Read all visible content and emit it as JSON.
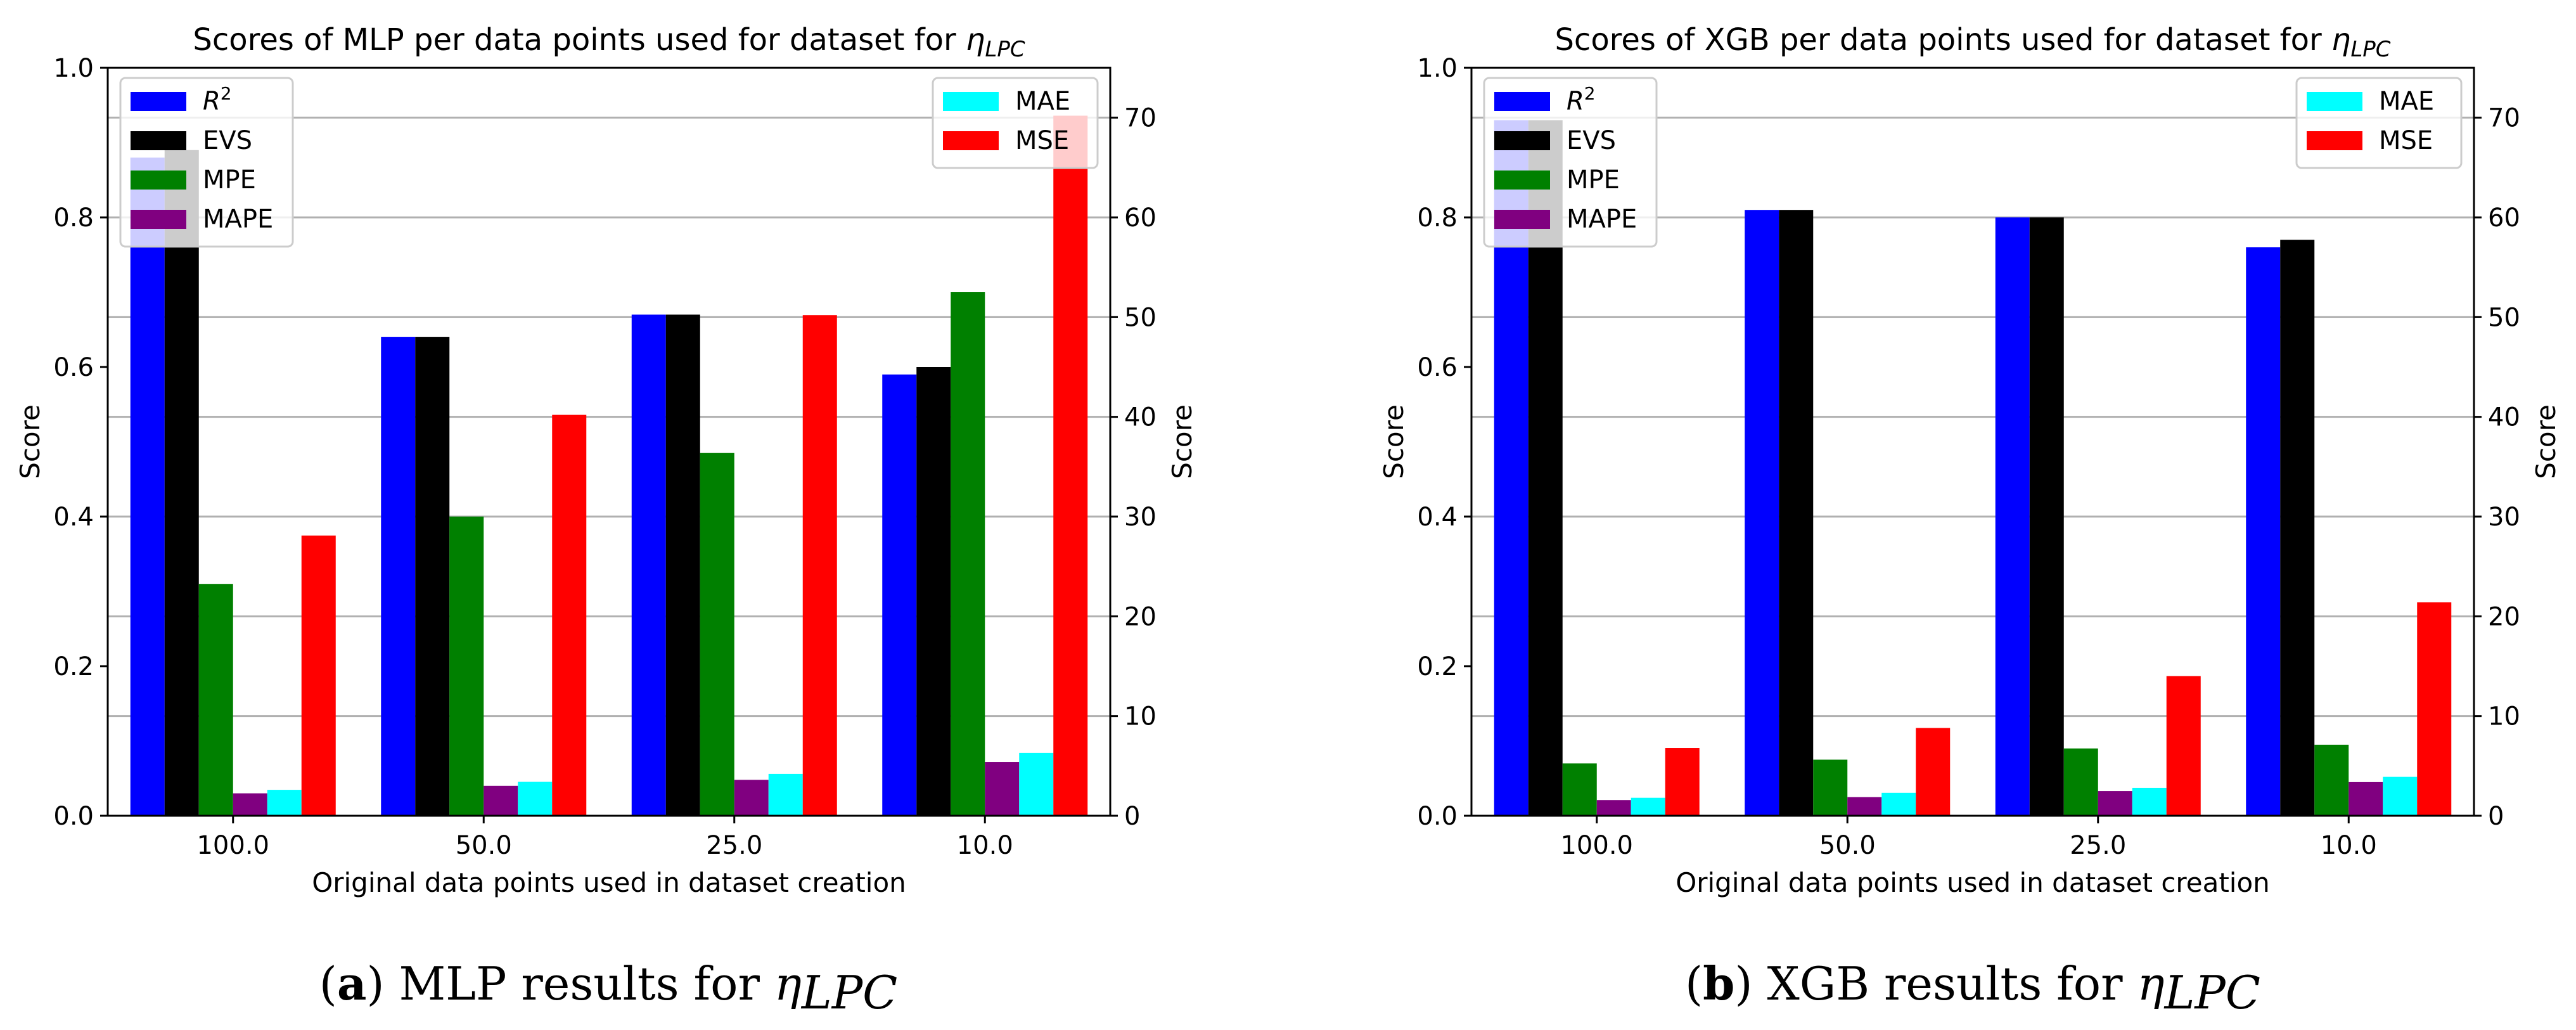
{
  "chart_data": [
    {
      "type": "bar",
      "title": "Scores of MLP per data points used for dataset for",
      "title_symbol": "η",
      "title_subscript": "LPC",
      "xlabel": "Original data points used in dataset creation",
      "ylabel_left": "Score",
      "ylabel_right": "Score",
      "categories": [
        "100.0",
        "50.0",
        "25.0",
        "10.0"
      ],
      "ylim_left": [
        0,
        1.0
      ],
      "yticks_left": [
        "0.0",
        "0.2",
        "0.4",
        "0.6",
        "0.8",
        "1.0"
      ],
      "ylim_right": [
        0,
        75
      ],
      "yticks_right": [
        "0",
        "10",
        "20",
        "30",
        "40",
        "50",
        "60",
        "70"
      ],
      "grid": "right-axis",
      "series": [
        {
          "name": "R2",
          "label": "R",
          "sup": "2",
          "axis": "left",
          "color": "#0000ff",
          "values": [
            0.88,
            0.64,
            0.67,
            0.59
          ]
        },
        {
          "name": "EVS",
          "label": "EVS",
          "axis": "left",
          "color": "#000000",
          "values": [
            0.89,
            0.64,
            0.67,
            0.6
          ]
        },
        {
          "name": "MPE",
          "label": "MPE",
          "axis": "left",
          "color": "#008000",
          "values": [
            0.31,
            0.4,
            0.485,
            0.7
          ]
        },
        {
          "name": "MAPE",
          "label": "MAPE",
          "axis": "left",
          "color": "#800080",
          "values": [
            0.03,
            0.04,
            0.048,
            0.072
          ]
        },
        {
          "name": "MAE",
          "label": "MAE",
          "axis": "right",
          "color": "#00ffff",
          "values": [
            2.6,
            3.4,
            4.2,
            6.3
          ]
        },
        {
          "name": "MSE",
          "label": "MSE",
          "axis": "right",
          "color": "#ff0000",
          "values": [
            28.1,
            40.2,
            50.2,
            70.2
          ]
        }
      ],
      "legend_left": "top-left",
      "legend_right": "top-right",
      "caption_letter": "a",
      "caption_text": "MLP results for"
    },
    {
      "type": "bar",
      "title": "Scores of XGB per data points used for dataset for",
      "title_symbol": "η",
      "title_subscript": "LPC",
      "xlabel": "Original data points used in dataset creation",
      "ylabel_left": "Score",
      "ylabel_right": "Score",
      "categories": [
        "100.0",
        "50.0",
        "25.0",
        "10.0"
      ],
      "ylim_left": [
        0,
        1.0
      ],
      "yticks_left": [
        "0.0",
        "0.2",
        "0.4",
        "0.6",
        "0.8",
        "1.0"
      ],
      "ylim_right": [
        0,
        75
      ],
      "yticks_right": [
        "0",
        "10",
        "20",
        "30",
        "40",
        "50",
        "60",
        "70"
      ],
      "grid": "right-axis",
      "series": [
        {
          "name": "R2",
          "label": "R",
          "sup": "2",
          "axis": "left",
          "color": "#0000ff",
          "values": [
            0.93,
            0.81,
            0.8,
            0.76
          ]
        },
        {
          "name": "EVS",
          "label": "EVS",
          "axis": "left",
          "color": "#000000",
          "values": [
            0.93,
            0.81,
            0.8,
            0.77
          ]
        },
        {
          "name": "MPE",
          "label": "MPE",
          "axis": "left",
          "color": "#008000",
          "values": [
            0.07,
            0.075,
            0.09,
            0.095
          ]
        },
        {
          "name": "MAPE",
          "label": "MAPE",
          "axis": "left",
          "color": "#800080",
          "values": [
            0.021,
            0.025,
            0.033,
            0.045
          ]
        },
        {
          "name": "MAE",
          "label": "MAE",
          "axis": "right",
          "color": "#00ffff",
          "values": [
            1.8,
            2.3,
            2.8,
            3.9
          ]
        },
        {
          "name": "MSE",
          "label": "MSE",
          "axis": "right",
          "color": "#ff0000",
          "values": [
            6.8,
            8.8,
            14.0,
            21.4
          ]
        }
      ],
      "legend_left": "top-left",
      "legend_right": "top-right",
      "caption_letter": "b",
      "caption_text": "XGB results for"
    }
  ]
}
